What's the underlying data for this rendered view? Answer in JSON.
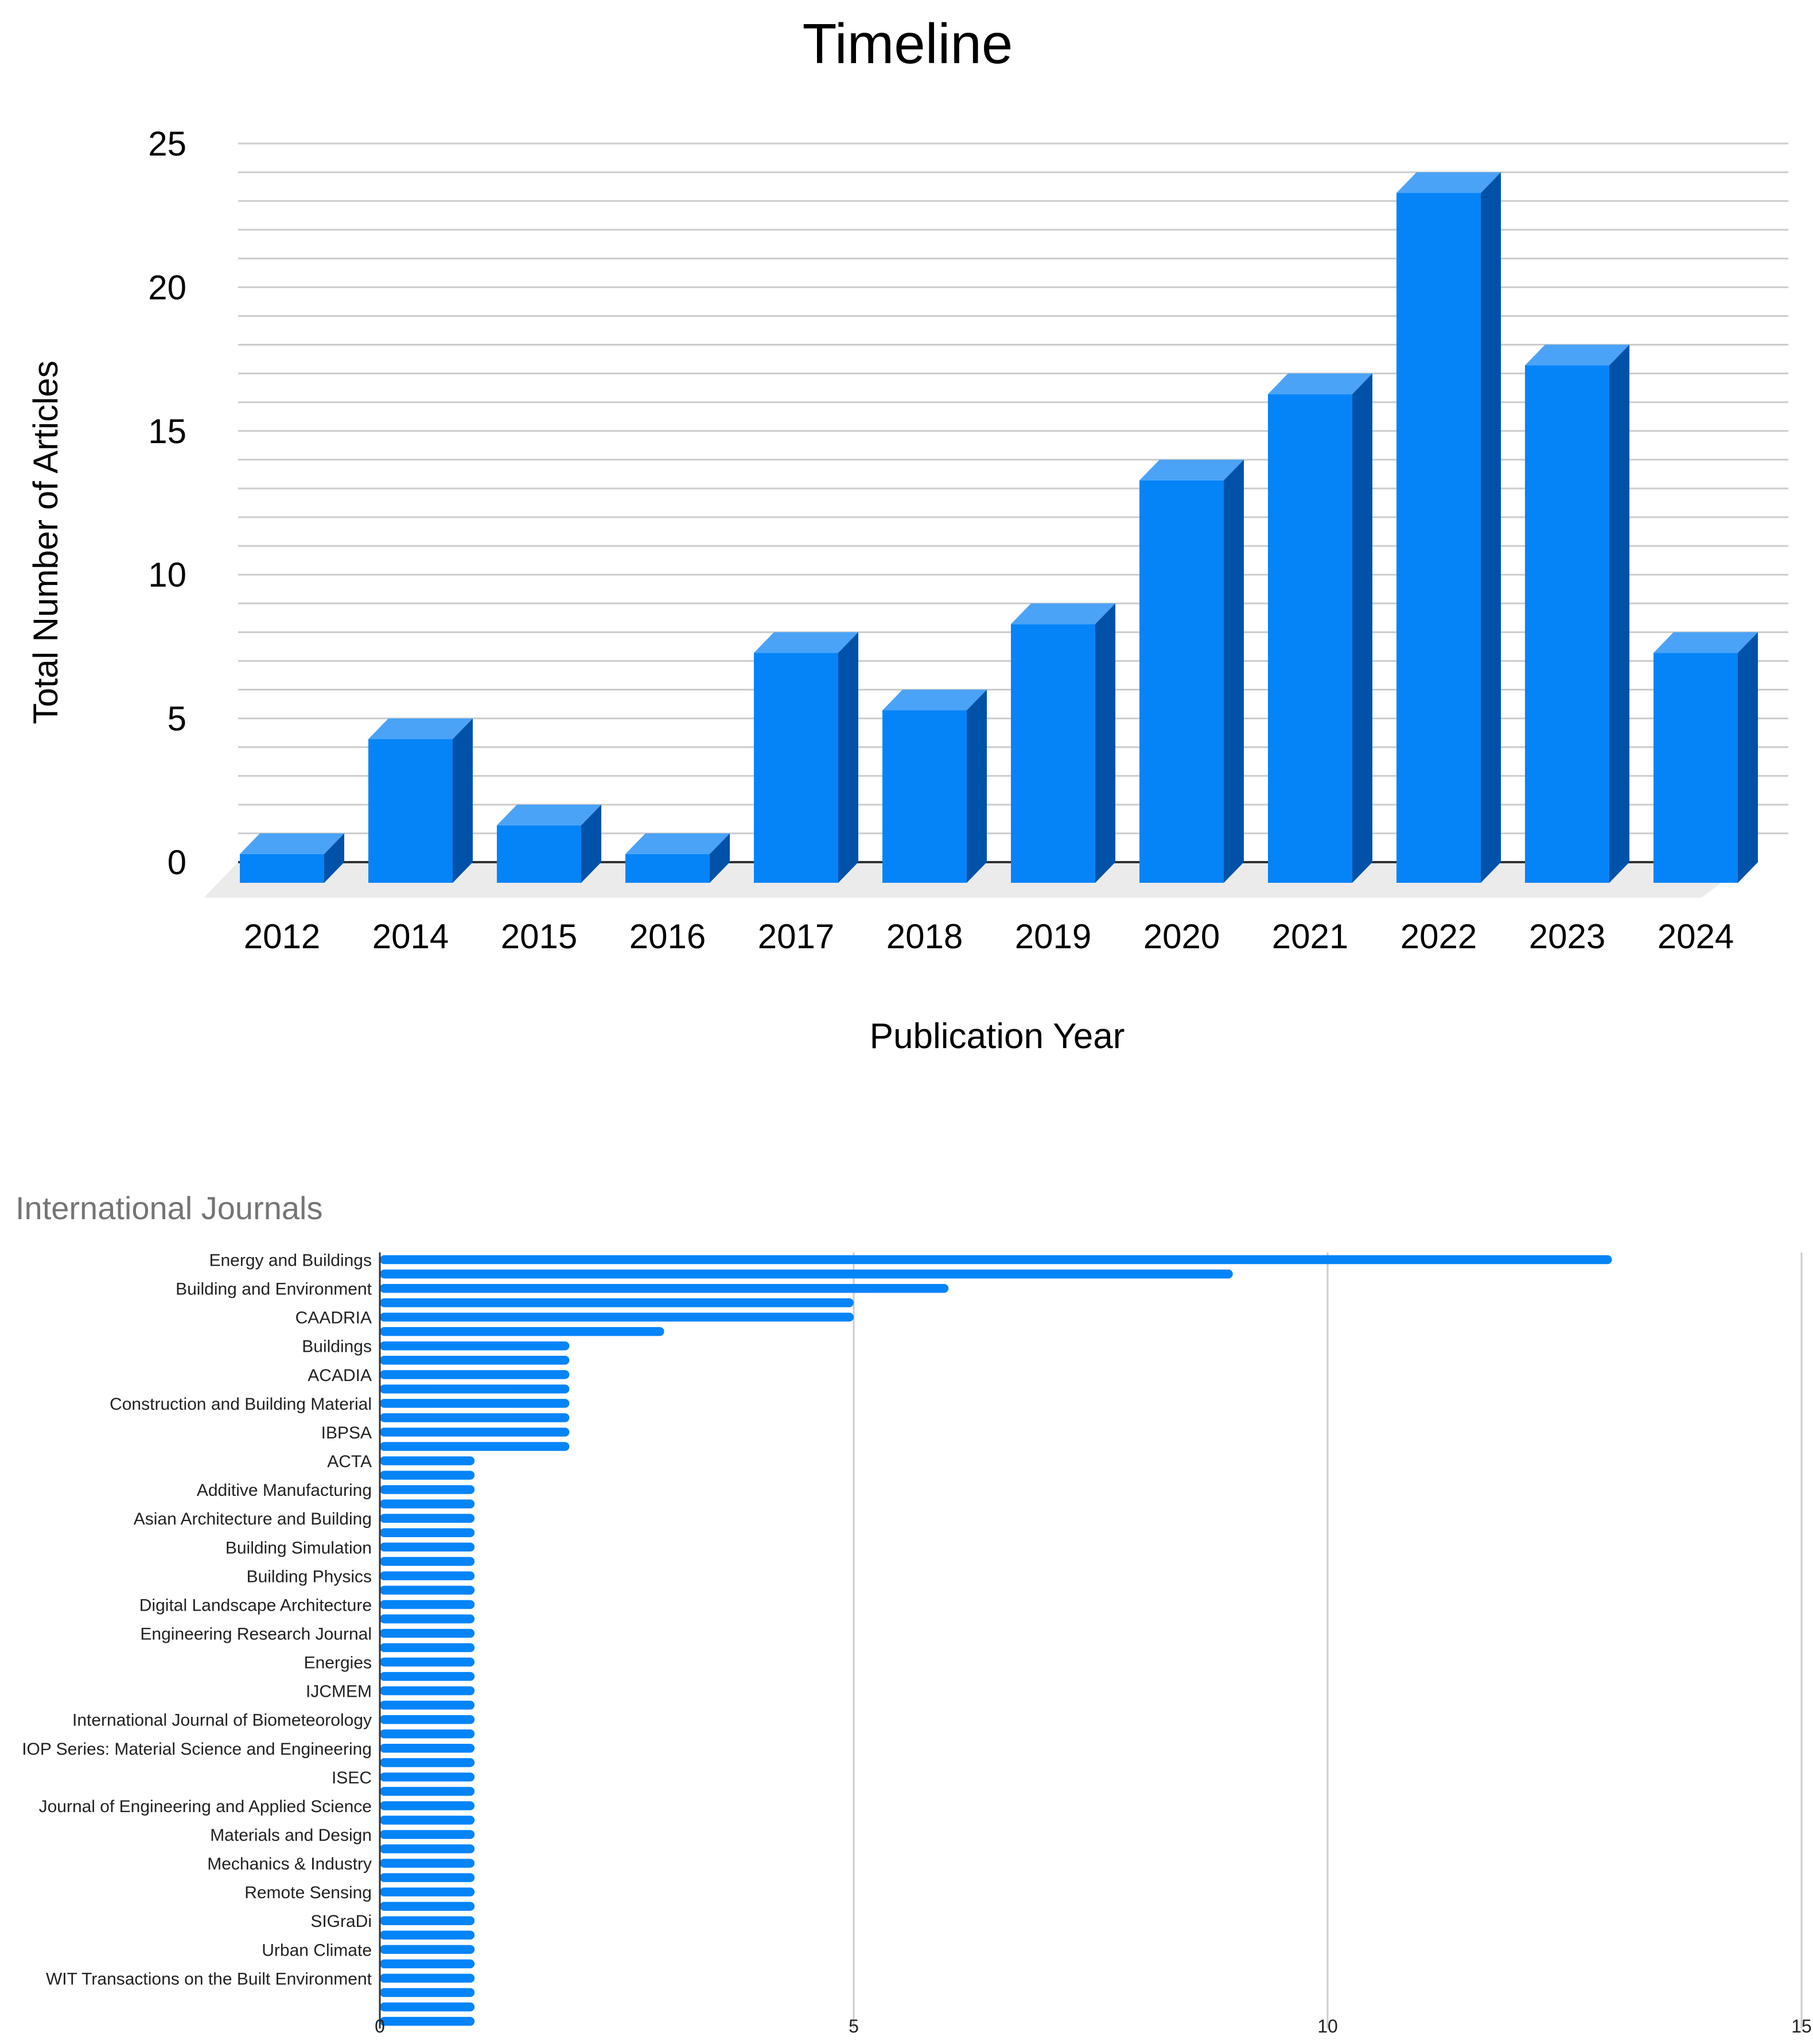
{
  "chart_data": [
    {
      "type": "bar",
      "style": "3d-column",
      "title": "Timeline",
      "xlabel": "Publication Year",
      "ylabel": "Total Number of Articles",
      "categories": [
        "2012",
        "2014",
        "2015",
        "2016",
        "2017",
        "2018",
        "2019",
        "2020",
        "2021",
        "2022",
        "2023",
        "2024"
      ],
      "values": [
        1,
        5,
        2,
        1,
        8,
        6,
        9,
        14,
        17,
        24,
        18,
        8
      ],
      "ylim": [
        0,
        25
      ],
      "yticks": [
        0,
        5,
        10,
        15,
        20,
        25
      ],
      "grid": true,
      "legend": "none",
      "colors": {
        "front": "#0584f8",
        "top": "#4aa3f7",
        "side": "#0052a8",
        "grid": "#cccccc",
        "text": "#000000"
      }
    },
    {
      "type": "bar",
      "orientation": "horizontal",
      "title": "International Journals",
      "xlabel": "",
      "ylabel": "",
      "bar_values": [
        13,
        9,
        6,
        5,
        5,
        3,
        2,
        2,
        2,
        2,
        2,
        2,
        2,
        2,
        1,
        1,
        1,
        1,
        1,
        1,
        1,
        1,
        1,
        1,
        1,
        1,
        1,
        1,
        1,
        1,
        1,
        1,
        1,
        1,
        1,
        1,
        1,
        1,
        1,
        1,
        1,
        1,
        1,
        1,
        1,
        1,
        1,
        1,
        1,
        1,
        1,
        1,
        1,
        1
      ],
      "labels": [
        {
          "text": "Energy and Buildings",
          "bar": 0
        },
        {
          "text": "Building and Environment",
          "bar": 2
        },
        {
          "text": "CAADRIA",
          "bar": 4
        },
        {
          "text": "Buildings",
          "bar": 6
        },
        {
          "text": "ACADIA",
          "bar": 8
        },
        {
          "text": "Construction and Building Material",
          "bar": 10
        },
        {
          "text": "IBPSA",
          "bar": 12
        },
        {
          "text": "ACTA",
          "bar": 14
        },
        {
          "text": "Additive Manufacturing",
          "bar": 16
        },
        {
          "text": "Asian Architecture and Building",
          "bar": 18
        },
        {
          "text": "Building Simulation",
          "bar": 20
        },
        {
          "text": "Building Physics",
          "bar": 22
        },
        {
          "text": "Digital Landscape Architecture",
          "bar": 24
        },
        {
          "text": "Engineering Research Journal",
          "bar": 26
        },
        {
          "text": "Energies",
          "bar": 28
        },
        {
          "text": "IJCMEM",
          "bar": 30
        },
        {
          "text": "International Journal of Biometeorology",
          "bar": 32
        },
        {
          "text": "IOP Series: Material Science and Engineering",
          "bar": 34
        },
        {
          "text": "ISEC",
          "bar": 36
        },
        {
          "text": "Journal of Engineering and Applied Science",
          "bar": 38
        },
        {
          "text": "Materials and Design",
          "bar": 40
        },
        {
          "text": "Mechanics & Industry",
          "bar": 42
        },
        {
          "text": "Remote Sensing",
          "bar": 44
        },
        {
          "text": "SIGraDi",
          "bar": 46
        },
        {
          "text": "Urban Climate",
          "bar": 48
        },
        {
          "text": "WIT Transactions on the Built Environment",
          "bar": 50
        }
      ],
      "xlim": [
        0,
        15
      ],
      "xticks": [
        0,
        5,
        10,
        15
      ],
      "grid": true,
      "legend": "none",
      "colors": {
        "bar": "#0584f8",
        "grid": "#cccccc",
        "title": "#757575",
        "text": "#222222"
      }
    }
  ]
}
